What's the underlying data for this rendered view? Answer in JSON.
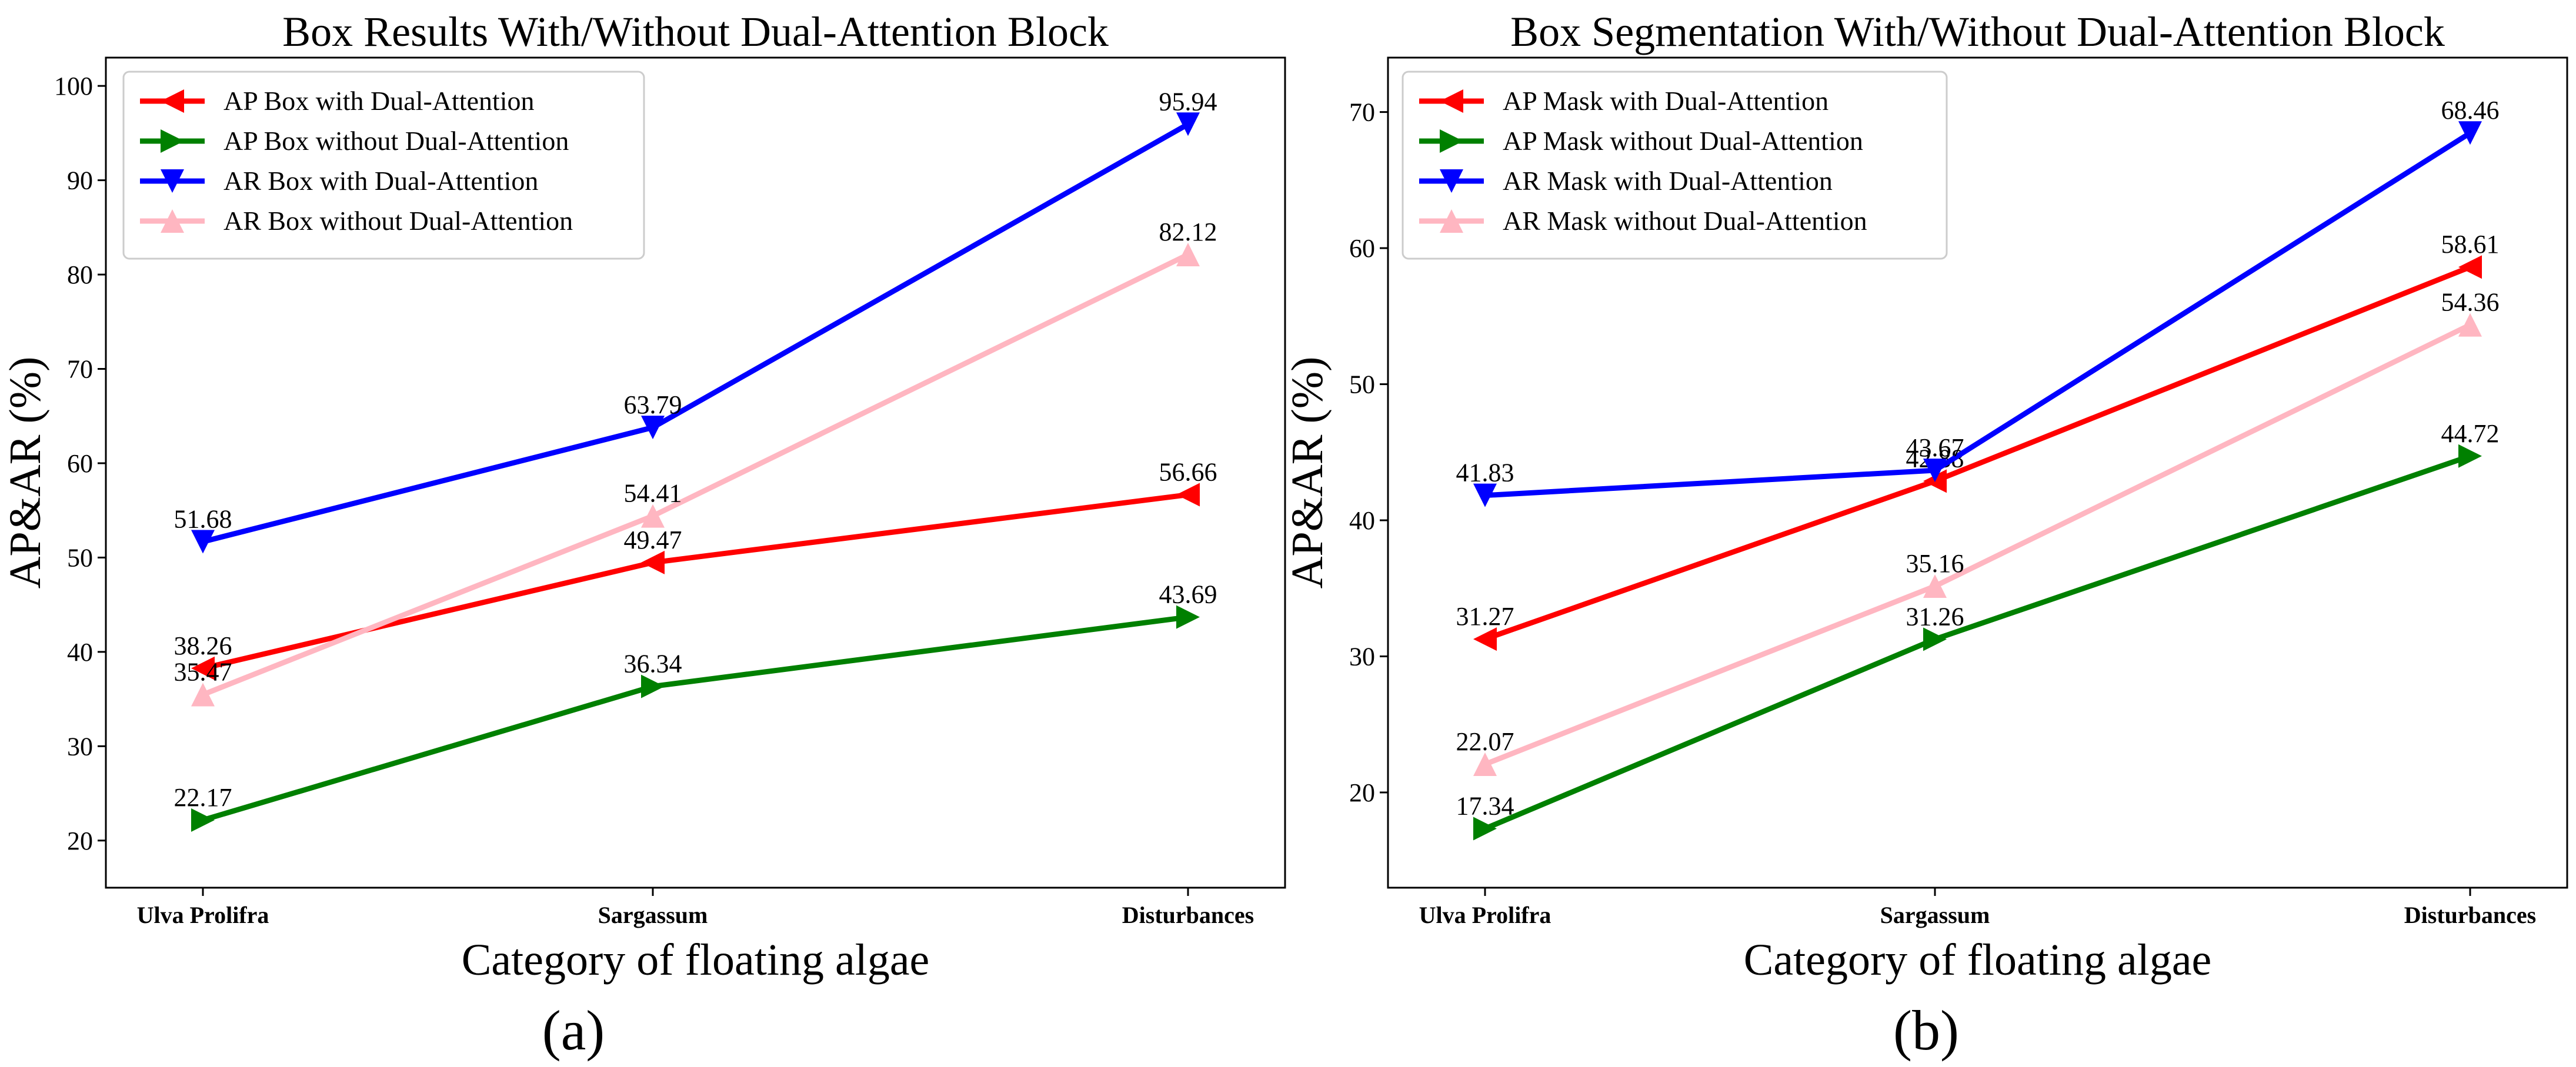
{
  "chart_data": [
    {
      "type": "line",
      "title": "Box Results With/Without Dual-Attention Block",
      "xlabel": "Category of floating algae",
      "ylabel": "AP&AR (%)",
      "caption": "(a)",
      "categories": [
        "Ulva Prolifra",
        "Sargassum",
        "Disturbances"
      ],
      "ylim": [
        15,
        103
      ],
      "yticks": [
        20,
        30,
        40,
        50,
        60,
        70,
        80,
        90,
        100
      ],
      "grid": false,
      "legend_position": "top-left",
      "series": [
        {
          "name": "AP Box with Dual-Attention",
          "color": "#ff0000",
          "marker": "triangle-left",
          "values": [
            38.26,
            49.47,
            56.66
          ]
        },
        {
          "name": "AP Box without Dual-Attention",
          "color": "#008000",
          "marker": "triangle-right",
          "values": [
            22.17,
            36.34,
            43.69
          ]
        },
        {
          "name": "AR Box with Dual-Attention",
          "color": "#0000ff",
          "marker": "triangle-down",
          "values": [
            51.68,
            63.79,
            95.94
          ]
        },
        {
          "name": "AR Box without Dual-Attention",
          "color": "#ffb6c1",
          "marker": "triangle-up",
          "values": [
            35.47,
            54.41,
            82.12
          ]
        }
      ]
    },
    {
      "type": "line",
      "title": "Box Segmentation With/Without Dual-Attention Block",
      "xlabel": "Category of floating algae",
      "ylabel": "AP&AR (%)",
      "caption": "(b)",
      "categories": [
        "Ulva Prolifra",
        "Sargassum",
        "Disturbances"
      ],
      "ylim": [
        13,
        74
      ],
      "yticks": [
        20,
        30,
        40,
        50,
        60,
        70
      ],
      "grid": false,
      "legend_position": "top-left",
      "series": [
        {
          "name": "AP Mask with Dual-Attention",
          "color": "#ff0000",
          "marker": "triangle-left",
          "values": [
            31.27,
            42.88,
            58.61
          ]
        },
        {
          "name": "AP Mask without Dual-Attention",
          "color": "#008000",
          "marker": "triangle-right",
          "values": [
            17.34,
            31.26,
            44.72
          ]
        },
        {
          "name": "AR Mask with Dual-Attention",
          "color": "#0000ff",
          "marker": "triangle-down",
          "values": [
            41.83,
            43.67,
            68.46
          ]
        },
        {
          "name": "AR Mask without Dual-Attention",
          "color": "#ffb6c1",
          "marker": "triangle-up",
          "values": [
            22.07,
            35.16,
            54.36
          ]
        }
      ]
    }
  ]
}
